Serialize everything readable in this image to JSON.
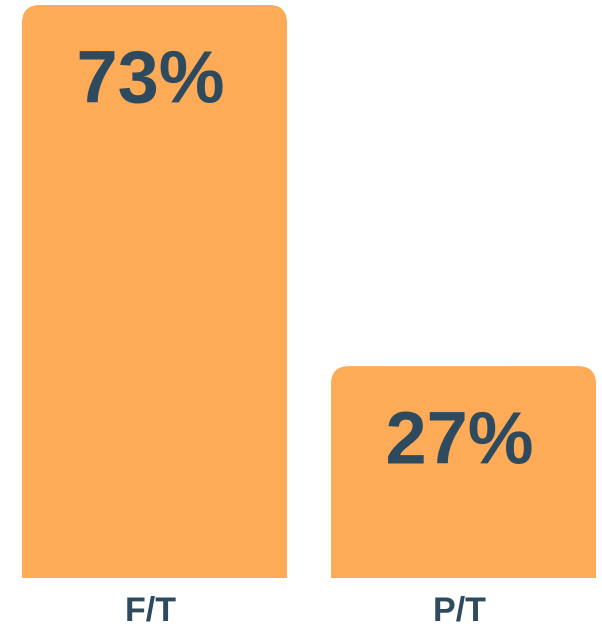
{
  "chart_data": {
    "type": "bar",
    "categories": [
      "F/T",
      "P/T"
    ],
    "values": [
      73,
      27
    ],
    "value_labels": [
      "73%",
      "27%"
    ],
    "color": "#fdab56"
  }
}
